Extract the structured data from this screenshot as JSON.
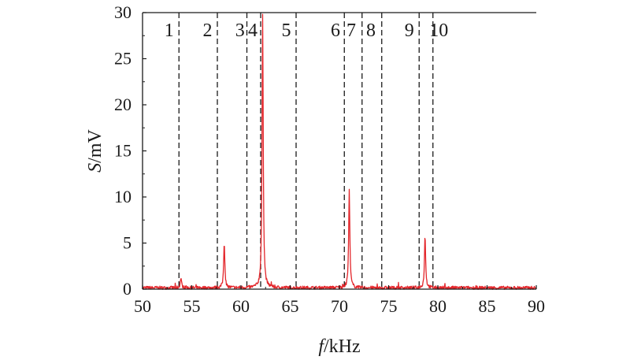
{
  "chart_data": {
    "type": "line",
    "xlabel_italic": "f",
    "xlabel_unit": "/kHz",
    "ylabel_italic": "S",
    "ylabel_unit": "/mV",
    "xlim": [
      50,
      90
    ],
    "ylim": [
      0,
      30
    ],
    "xticks": [
      50,
      55,
      60,
      65,
      70,
      75,
      80,
      85,
      90
    ],
    "yticks": [
      0,
      5,
      10,
      15,
      20,
      25,
      30
    ],
    "grid": false,
    "line_color": "#e3262b",
    "baseline": 0.15,
    "peaks": [
      {
        "x": 53.9,
        "y": 1.1
      },
      {
        "x": 58.3,
        "y": 5.0
      },
      {
        "x": 62.2,
        "y": 29.5
      },
      {
        "x": 71.0,
        "y": 10.6
      },
      {
        "x": 78.7,
        "y": 5.7
      }
    ],
    "band_boundaries": [
      53.7,
      57.6,
      60.6,
      62.0,
      65.6,
      70.5,
      72.3,
      74.3,
      78.1,
      79.5
    ],
    "band_labels": [
      {
        "label": "1",
        "x": 52.7
      },
      {
        "label": "2",
        "x": 56.6
      },
      {
        "label": "3",
        "x": 59.9
      },
      {
        "label": "4",
        "x": 61.2
      },
      {
        "label": "5",
        "x": 64.6
      },
      {
        "label": "6",
        "x": 69.6
      },
      {
        "label": "7",
        "x": 71.2
      },
      {
        "label": "8",
        "x": 73.2
      },
      {
        "label": "9",
        "x": 77.1
      },
      {
        "label": "10",
        "x": 80.1
      }
    ]
  }
}
